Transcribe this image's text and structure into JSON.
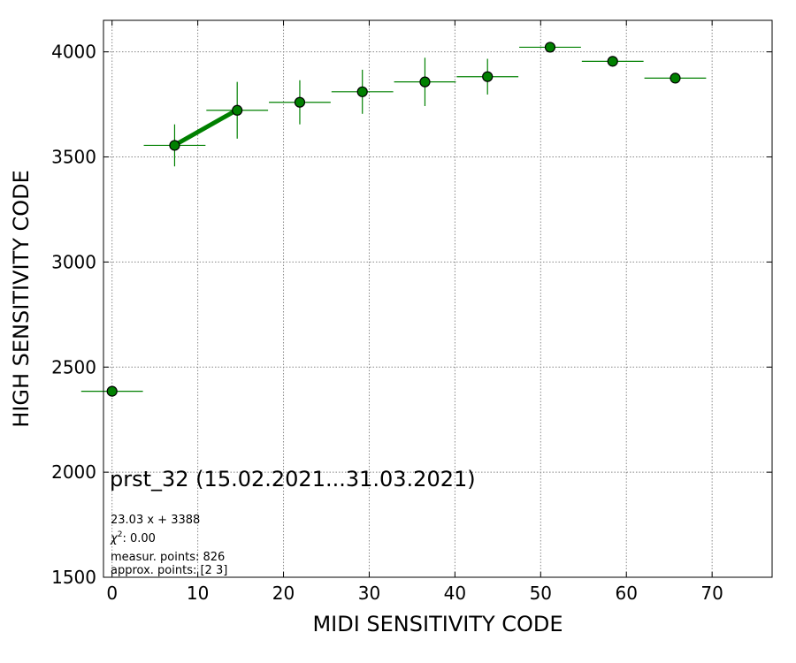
{
  "chart_data": {
    "type": "scatter",
    "title": "",
    "xlabel": "MIDI SENSITIVITY CODE",
    "ylabel": "HIGH SENSITIVITY CODE",
    "xlim": [
      -1,
      77
    ],
    "ylim": [
      1500,
      4150
    ],
    "xticks": [
      0,
      10,
      20,
      30,
      40,
      50,
      60,
      70
    ],
    "yticks": [
      1500,
      2000,
      2500,
      3000,
      3500,
      4000
    ],
    "grid": true,
    "marker_color": "#008000",
    "fit_color": "#008000",
    "points": [
      {
        "x": 0.0,
        "y": 2385,
        "xerr": 3.6,
        "yerr": 0
      },
      {
        "x": 7.3,
        "y": 3555,
        "xerr": 3.6,
        "yerr": 100
      },
      {
        "x": 14.6,
        "y": 3722,
        "xerr": 3.6,
        "yerr": 135
      },
      {
        "x": 21.9,
        "y": 3760,
        "xerr": 3.6,
        "yerr": 105
      },
      {
        "x": 29.2,
        "y": 3810,
        "xerr": 3.6,
        "yerr": 105
      },
      {
        "x": 36.5,
        "y": 3857,
        "xerr": 3.6,
        "yerr": 115
      },
      {
        "x": 43.8,
        "y": 3882,
        "xerr": 3.6,
        "yerr": 85
      },
      {
        "x": 51.1,
        "y": 4022,
        "xerr": 3.6,
        "yerr": 0
      },
      {
        "x": 58.4,
        "y": 3955,
        "xerr": 3.6,
        "yerr": 0
      },
      {
        "x": 65.7,
        "y": 3875,
        "xerr": 3.6,
        "yerr": 20
      }
    ],
    "fit": {
      "slope": 23.03,
      "intercept": 3388,
      "x_from": 7.3,
      "x_to": 14.6
    },
    "annotations": {
      "dataset": "prst_32 (15.02.2021...31.03.2021)",
      "fit_equation": "23.03 x + 3388",
      "chi2_label": "χ",
      "chi2_sup": "2",
      "chi2_value": ": 0.00",
      "measur_points": "measur. points: 826",
      "approx_points": "approx. points: [2 3]"
    }
  }
}
